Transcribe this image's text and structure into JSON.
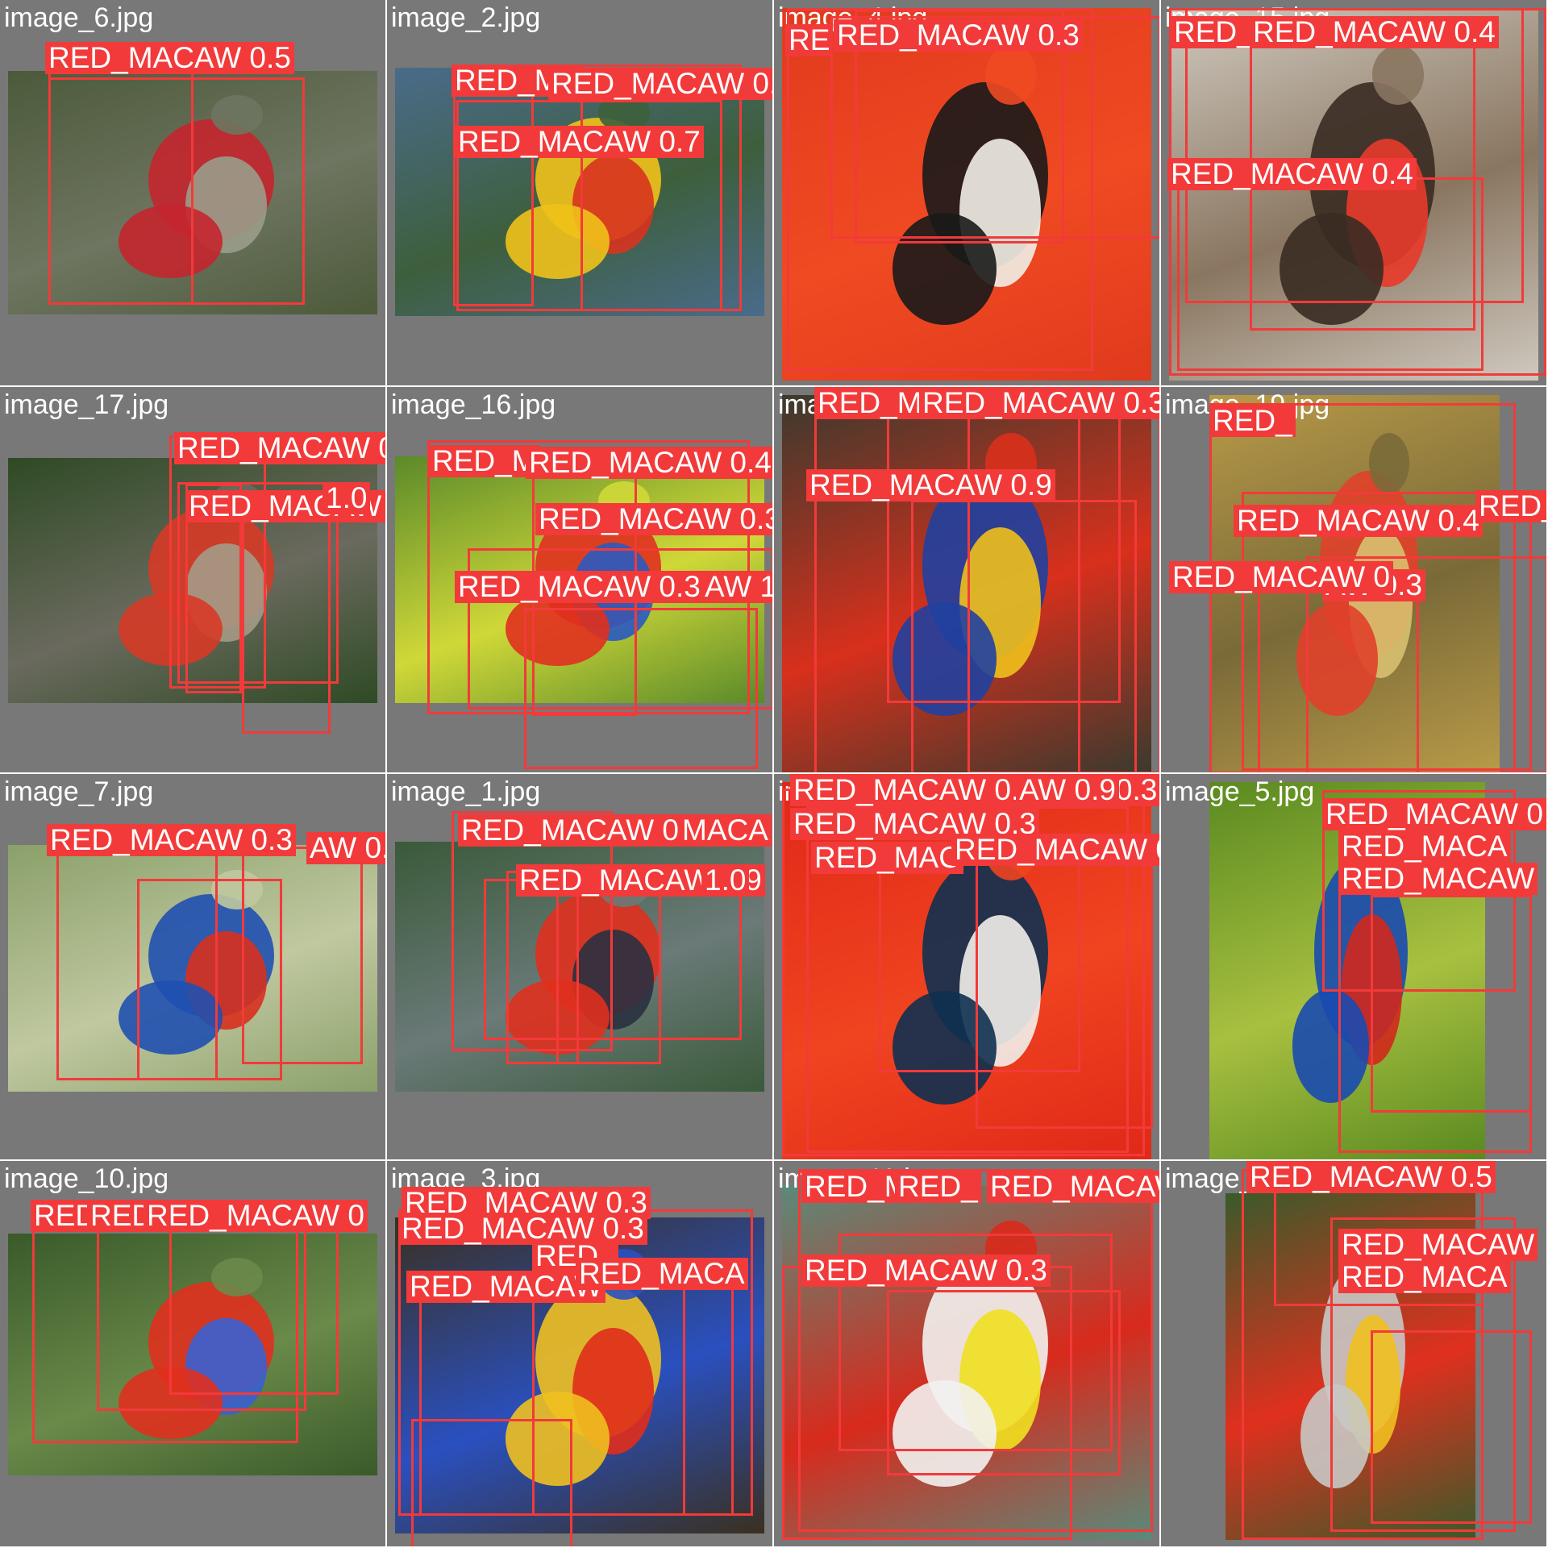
{
  "label_text": "RED_MACAW",
  "colors": {
    "tile_bg": "#787878",
    "box": "#f23a3a",
    "label_text": "#ffffff"
  },
  "tiles": [
    {
      "name": "image_6.jpg",
      "labels": [
        "RED_MACAW 0.5"
      ],
      "photo_palette": [
        "#4c5a3a",
        "#6e7560",
        "#9a9c8a",
        "#c4262d"
      ]
    },
    {
      "name": "image_2.jpg",
      "labels": [
        "RED_MA",
        "RED_MACAW 0.3",
        "RED_MACAW 0.7"
      ],
      "photo_palette": [
        "#4a6b8a",
        "#3d5f3c",
        "#d8331f",
        "#f0c21a"
      ]
    },
    {
      "name": "image_4.jpg",
      "labels": [
        "RE",
        "RED_MACAW 0.3"
      ],
      "photo_palette": [
        "#e03a1e",
        "#f04a22",
        "#f2eee7",
        "#1a1a1a"
      ]
    },
    {
      "name": "image_15.jpg",
      "labels": [
        "RED_R",
        "RED_MACAW 0.4",
        "RED_MACAW 0.4"
      ],
      "photo_palette": [
        "#cfc9bf",
        "#8a7660",
        "#e83a2a",
        "#3a2b22"
      ]
    },
    {
      "name": "image_17.jpg",
      "labels": [
        "RED_MACAW 0.4",
        "RED_MACAW 0.3",
        "1.0"
      ],
      "photo_palette": [
        "#2f4a24",
        "#6a6a5e",
        "#a49a86",
        "#d63a26"
      ]
    },
    {
      "name": "image_16.jpg",
      "labels": [
        "RED_M",
        "RED_MACAW 0.4",
        "RED_MACAW 0.3",
        "RED_MACAW 0.3",
        "AW 1.0"
      ],
      "photo_palette": [
        "#5a8a2a",
        "#d0d838",
        "#2a5ac0",
        "#e0301e"
      ]
    },
    {
      "name": "image_18.jpg",
      "labels": [
        "RED_M",
        "RED_MACAW 0.3",
        "RED_MACAW 0.9"
      ],
      "photo_palette": [
        "#3a3a2e",
        "#d8301c",
        "#f0c01c",
        "#2040a0"
      ]
    },
    {
      "name": "image_19.jpg",
      "labels": [
        "RED_",
        "RED_MACAW 0.4",
        "RED_MACAW 0.3",
        "AW 0.3",
        "RED_MACAW 0"
      ],
      "photo_palette": [
        "#b89a48",
        "#7a6a38",
        "#d8c070",
        "#e0402a"
      ]
    },
    {
      "name": "image_7.jpg",
      "labels": [
        "RED_MACAW 0.3",
        "AW 0.4"
      ],
      "photo_palette": [
        "#8aa06a",
        "#c0c8a0",
        "#d8301e",
        "#2050b0"
      ]
    },
    {
      "name": "image_1.jpg",
      "labels": [
        "RED_MACAW 0.5",
        "MACA",
        "RED_MACAW 0.9",
        "1.0"
      ],
      "photo_palette": [
        "#3a5a3a",
        "#6a7a78",
        "#2a3040",
        "#e0301e"
      ]
    },
    {
      "name": "image_9.jpg",
      "labels": [
        "RED_MACAW 0.3",
        "ACAW 0.3",
        "RED_MACAW 0.3",
        "AW 0.9",
        "RED_MAC",
        "RED_MACAW 0.6",
        "0.8"
      ],
      "photo_palette": [
        "#e02818",
        "#f04420",
        "#f2f0ea",
        "#103050"
      ]
    },
    {
      "name": "image_5.jpg",
      "labels": [
        "RED_MACAW 0",
        "RED_MACA",
        "RED_MACAW"
      ],
      "photo_palette": [
        "#5a8a20",
        "#a8c040",
        "#d0281c",
        "#1a4ab0"
      ]
    },
    {
      "name": "image_10.jpg",
      "labels": [
        "RED",
        "RED",
        "RED_MACAW 0"
      ],
      "photo_palette": [
        "#3a5a2a",
        "#6a8a4a",
        "#3a60d0",
        "#e0301e"
      ]
    },
    {
      "name": "image_3.jpg",
      "labels": [
        "RED_MACAW 0.3",
        "RED_MACAW 0.3",
        "RED_MACAW",
        "RED_",
        "RED_MACA"
      ],
      "photo_palette": [
        "#3a3020",
        "#2a50c0",
        "#e02c1c",
        "#f0c020"
      ]
    },
    {
      "name": "image_11.jpg",
      "labels": [
        "RED_M",
        "RED_",
        "RED_MACAW 0.5",
        "RED_MACAW 0.3"
      ],
      "photo_palette": [
        "#5a8a7a",
        "#d82a1c",
        "#f0e020",
        "#f2f2f0"
      ]
    },
    {
      "name": "image_8.jpg",
      "labels": [
        "RED_MACAW 0.5",
        "RED_MACAW",
        "RED_MACA"
      ],
      "photo_palette": [
        "#3a5a2a",
        "#e0301e",
        "#f0c020",
        "#c8c8c4"
      ]
    }
  ]
}
